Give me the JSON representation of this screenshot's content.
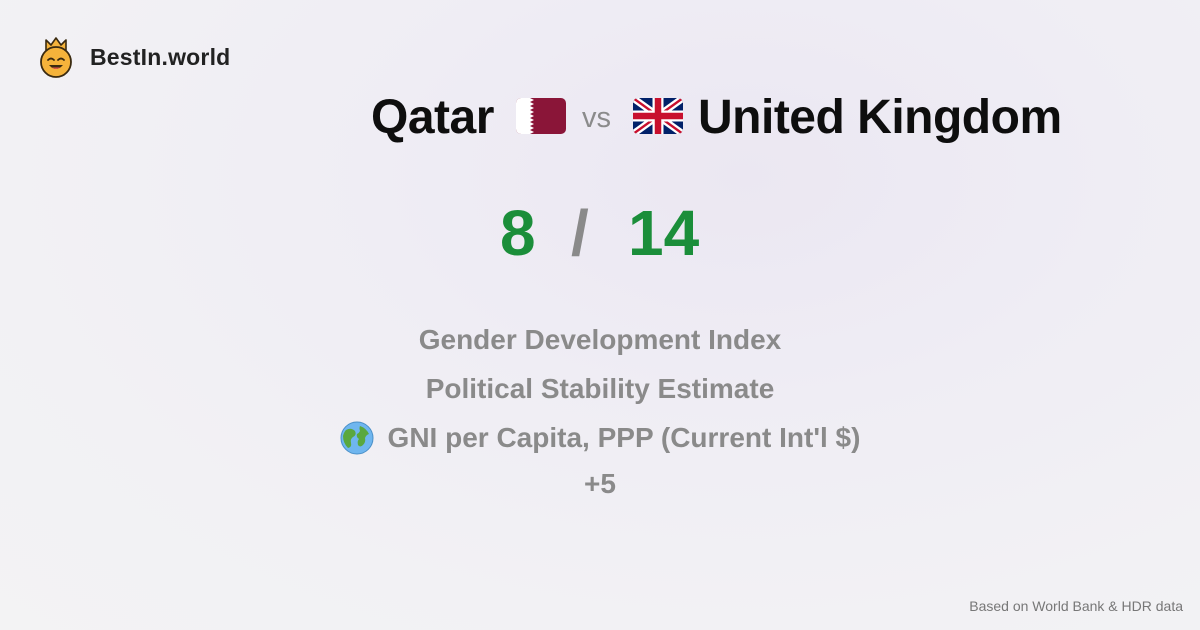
{
  "brand": {
    "name": "BestIn.world",
    "logo_icon": "crowned-smiley-icon",
    "logo_color": "#f5b33b"
  },
  "comparison": {
    "country_a": {
      "name": "Qatar",
      "flag_icon": "qatar-flag-icon",
      "flag_color": "#8a1538"
    },
    "vs_label": "vs",
    "country_b": {
      "name": "United Kingdom",
      "flag_icon": "uk-flag-icon"
    }
  },
  "score": {
    "a": "8",
    "separator": "/",
    "b": "14",
    "color": "#1b8e3a"
  },
  "metrics": [
    {
      "label": "Gender Development Index"
    },
    {
      "label": "Political Stability Estimate"
    },
    {
      "label": "GNI per Capita, PPP (Current Int'l $)",
      "icon": "globe-icon"
    }
  ],
  "more_label": "+5",
  "footer": {
    "source": "Based on World Bank & HDR data"
  }
}
